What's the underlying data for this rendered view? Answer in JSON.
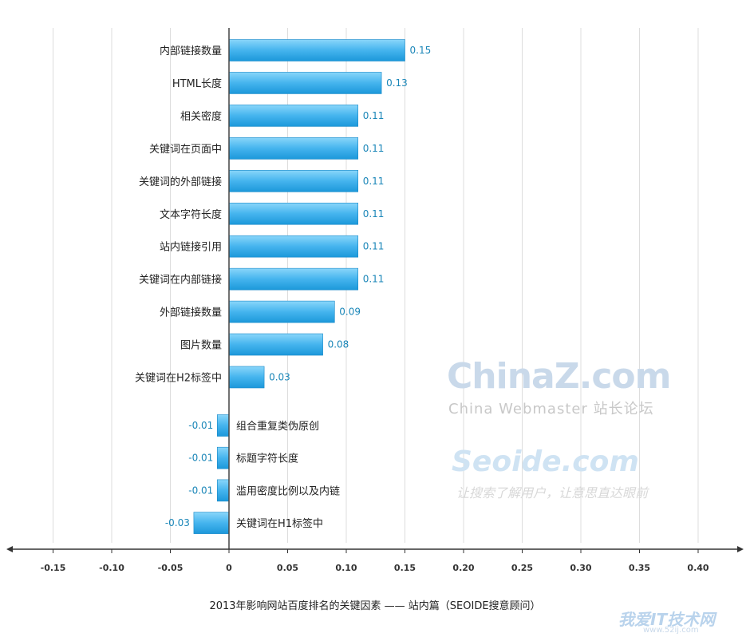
{
  "chart_data": {
    "type": "bar",
    "orientation": "horizontal",
    "categories": [
      "内部链接数量",
      "HTML长度",
      "相关密度",
      "关键词在页面中",
      "关键词的外部链接",
      "文本字符长度",
      "站内链接引用",
      "关键词在内部链接",
      "外部链接数量",
      "图片数量",
      "关键词在H2标签中",
      "组合重复类伪原创",
      "标题字符长度",
      "滥用密度比例以及内链",
      "关键词在H1标签中"
    ],
    "values": [
      0.15,
      0.13,
      0.11,
      0.11,
      0.11,
      0.11,
      0.11,
      0.11,
      0.09,
      0.08,
      0.03,
      -0.01,
      -0.01,
      -0.01,
      -0.03
    ],
    "value_labels": [
      "0.15",
      "0.13",
      "0.11",
      "0.11",
      "0.11",
      "0.11",
      "0.11",
      "0.11",
      "0.09",
      "0.08",
      "0.03",
      "-0.01",
      "-0.01",
      "-0.01",
      "-0.03"
    ],
    "xticks": [
      "-0.15",
      "-0.10",
      "-0.05",
      "0",
      "0.05",
      "0.10",
      "0.15",
      "0.20",
      "0.25",
      "0.30",
      "0.35",
      "0.40"
    ],
    "xlim": [
      -0.15,
      0.4
    ],
    "grid": true,
    "caption": "2013年影响网站百度排名的关键因素 —— 站内篇（SEOIDE搜意顾问）",
    "colors": {
      "bar_top": "#7fd0f7",
      "bar_bottom": "#1f9fe0",
      "bar_edge": "#1889c8",
      "value_label": "#1a86b8",
      "grid": "#dddddd",
      "axis": "#333333"
    }
  },
  "watermarks": {
    "chinaz": "ChinaZ.com",
    "chinaz_sub": "China Webmaster 站长论坛",
    "seoide": "Seoide.com",
    "seoide_sub": "让搜索了解用户，让意思直达眼前",
    "corner": "我爱IT技术网",
    "corner_sub": "www.52ij.com"
  }
}
